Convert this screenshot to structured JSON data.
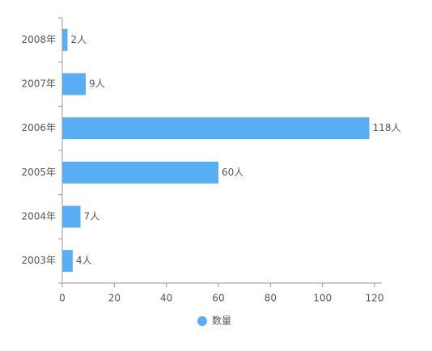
{
  "chart_data": {
    "type": "bar",
    "orientation": "horizontal",
    "categories": [
      "2008年",
      "2007年",
      "2006年",
      "2005年",
      "2004年",
      "2003年"
    ],
    "series": [
      {
        "name": "数量",
        "color": "#59adf3",
        "values": [
          2,
          9,
          118,
          60,
          7,
          4
        ],
        "value_labels": [
          "2人",
          "9人",
          "118人",
          "60人",
          "7人",
          "4人"
        ]
      }
    ],
    "xlim": [
      0,
      120
    ],
    "xticks": [
      0,
      20,
      40,
      60,
      80,
      100,
      120
    ]
  }
}
